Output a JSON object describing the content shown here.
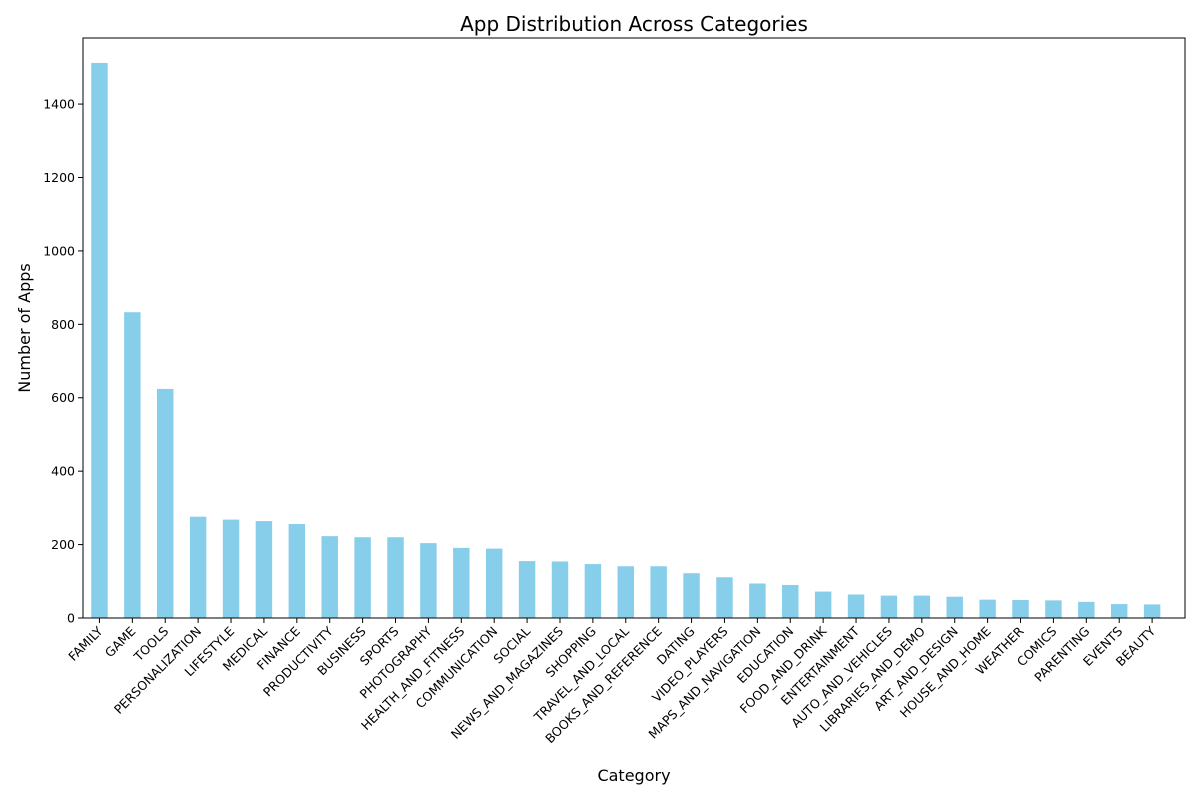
{
  "chart_data": {
    "type": "bar",
    "title": "App Distribution Across Categories",
    "xlabel": "Category",
    "ylabel": "Number of Apps",
    "ylim": [
      0,
      1580
    ],
    "yticks": [
      0,
      200,
      400,
      600,
      800,
      1000,
      1200,
      1400
    ],
    "bar_color": "#87CEEB",
    "grid": false,
    "categories": [
      "FAMILY",
      "GAME",
      "TOOLS",
      "PERSONALIZATION",
      "LIFESTYLE",
      "MEDICAL",
      "FINANCE",
      "PRODUCTIVITY",
      "BUSINESS",
      "SPORTS",
      "PHOTOGRAPHY",
      "HEALTH_AND_FITNESS",
      "COMMUNICATION",
      "SOCIAL",
      "NEWS_AND_MAGAZINES",
      "SHOPPING",
      "TRAVEL_AND_LOCAL",
      "BOOKS_AND_REFERENCE",
      "DATING",
      "VIDEO_PLAYERS",
      "MAPS_AND_NAVIGATION",
      "EDUCATION",
      "FOOD_AND_DRINK",
      "ENTERTAINMENT",
      "AUTO_AND_VEHICLES",
      "LIBRARIES_AND_DEMO",
      "ART_AND_DESIGN",
      "HOUSE_AND_HOME",
      "WEATHER",
      "COMICS",
      "PARENTING",
      "EVENTS",
      "BEAUTY"
    ],
    "values": [
      1512,
      833,
      624,
      276,
      268,
      264,
      256,
      223,
      220,
      220,
      204,
      191,
      189,
      155,
      154,
      147,
      141,
      141,
      122,
      111,
      94,
      90,
      72,
      64,
      61,
      61,
      58,
      50,
      49,
      48,
      44,
      38,
      37
    ]
  }
}
